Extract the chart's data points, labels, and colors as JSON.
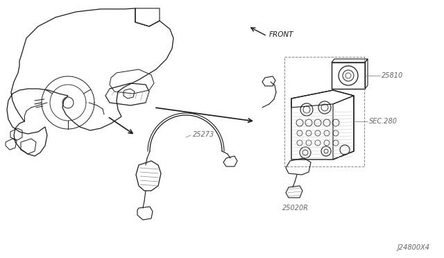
{
  "background_color": "#ffffff",
  "diagram_id": "J24800X4",
  "labels": {
    "part1": "25273",
    "part2": "25810",
    "part3": "25020R",
    "part4": "SEC.280",
    "front_label": "FRONT"
  },
  "line_color": "#1a1a1a",
  "text_color": "#666666",
  "figsize": [
    6.4,
    3.72
  ],
  "dpi": 100
}
